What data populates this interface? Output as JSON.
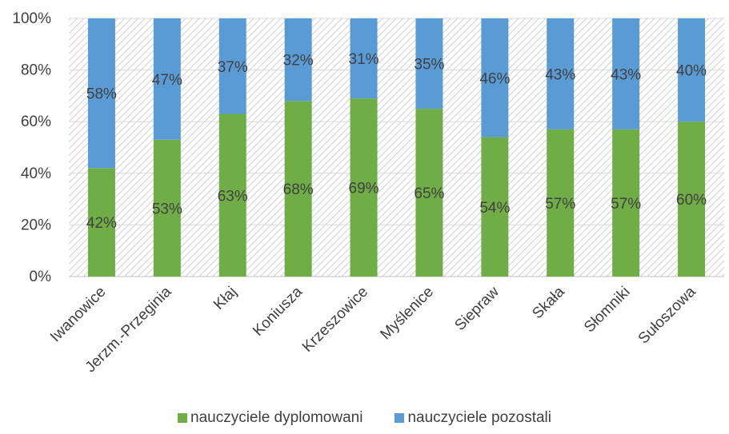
{
  "chart_data": {
    "type": "bar",
    "stacked": true,
    "percent": true,
    "categories": [
      "Iwanowice",
      "Jerzm.-Przeginia",
      "Kłaj",
      "Koniusza",
      "Krzeszowice",
      "Myślenice",
      "Siepraw",
      "Skała",
      "Słomniki",
      "Sułoszowa"
    ],
    "series": [
      {
        "name": "nauczyciele dyplomowani",
        "values": [
          42,
          53,
          63,
          68,
          69,
          65,
          54,
          57,
          57,
          60
        ],
        "color": "#70AD47"
      },
      {
        "name": "nauczyciele pozostali",
        "values": [
          58,
          47,
          37,
          32,
          31,
          35,
          46,
          43,
          43,
          40
        ],
        "color": "#5B9BD5"
      }
    ],
    "y_ticks": [
      "0%",
      "20%",
      "40%",
      "60%",
      "80%",
      "100%"
    ],
    "ylim": [
      0,
      100
    ],
    "data_label_suffix": "%",
    "legend_position": "bottom",
    "plot_background": "hatched"
  }
}
